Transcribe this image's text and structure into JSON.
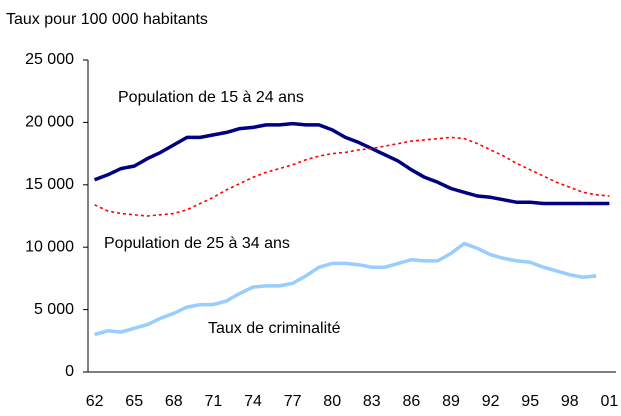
{
  "chart_data": {
    "type": "line",
    "y_label": "Taux pour 100 000 habitants",
    "categories": [
      "62",
      null,
      null,
      "65",
      null,
      null,
      "68",
      null,
      null,
      "71",
      null,
      null,
      "74",
      null,
      null,
      "77",
      null,
      null,
      "80",
      null,
      null,
      "83",
      null,
      null,
      "86",
      null,
      null,
      "89",
      null,
      null,
      "92",
      null,
      null,
      "95",
      null,
      null,
      "98",
      null,
      null,
      "01"
    ],
    "ylim": [
      0,
      25000
    ],
    "yticks": [
      {
        "value": 0,
        "label": "0"
      },
      {
        "value": 5000,
        "label": "5 000"
      },
      {
        "value": 10000,
        "label": "10 000"
      },
      {
        "value": 15000,
        "label": "15 000"
      },
      {
        "value": 20000,
        "label": "20 000"
      },
      {
        "value": 25000,
        "label": "25 000"
      }
    ],
    "series": [
      {
        "name": "Population de 15 à 24 ans",
        "color": "#000080",
        "dash": false,
        "values": [
          15400,
          15800,
          16300,
          16500,
          17100,
          17600,
          18200,
          18800,
          18800,
          19000,
          19200,
          19500,
          19600,
          19800,
          19800,
          19900,
          19800,
          19800,
          19400,
          18800,
          18400,
          17900,
          17400,
          16900,
          16200,
          15600,
          15200,
          14700,
          14400,
          14100,
          14000,
          13800,
          13600,
          13600,
          13500,
          13500,
          13500,
          13500,
          13500,
          13500
        ]
      },
      {
        "name": "Population de 25 à 34 ans",
        "color": "#ff0000",
        "dash": true,
        "values": [
          13400,
          12900,
          12700,
          12600,
          12500,
          12600,
          12700,
          13000,
          13500,
          14000,
          14600,
          15100,
          15600,
          16000,
          16300,
          16600,
          17000,
          17300,
          17500,
          17600,
          17800,
          17900,
          18100,
          18300,
          18500,
          18600,
          18700,
          18800,
          18700,
          18300,
          17800,
          17300,
          16700,
          16200,
          15700,
          15200,
          14800,
          14400,
          14200,
          14100
        ]
      },
      {
        "name": "Taux de criminalité",
        "color": "#99ccff",
        "dash": false,
        "values": [
          3000,
          3300,
          3200,
          3500,
          3800,
          4300,
          4700,
          5200,
          5400,
          5400,
          5700,
          6300,
          6800,
          6900,
          6900,
          7100,
          7700,
          8400,
          8700,
          8700,
          8600,
          8400,
          8400,
          8700,
          9000,
          8900,
          8900,
          9500,
          10300,
          9900,
          9400,
          9100,
          8900,
          8800,
          8400,
          8100,
          7800,
          7600,
          7700,
          null
        ]
      }
    ]
  }
}
